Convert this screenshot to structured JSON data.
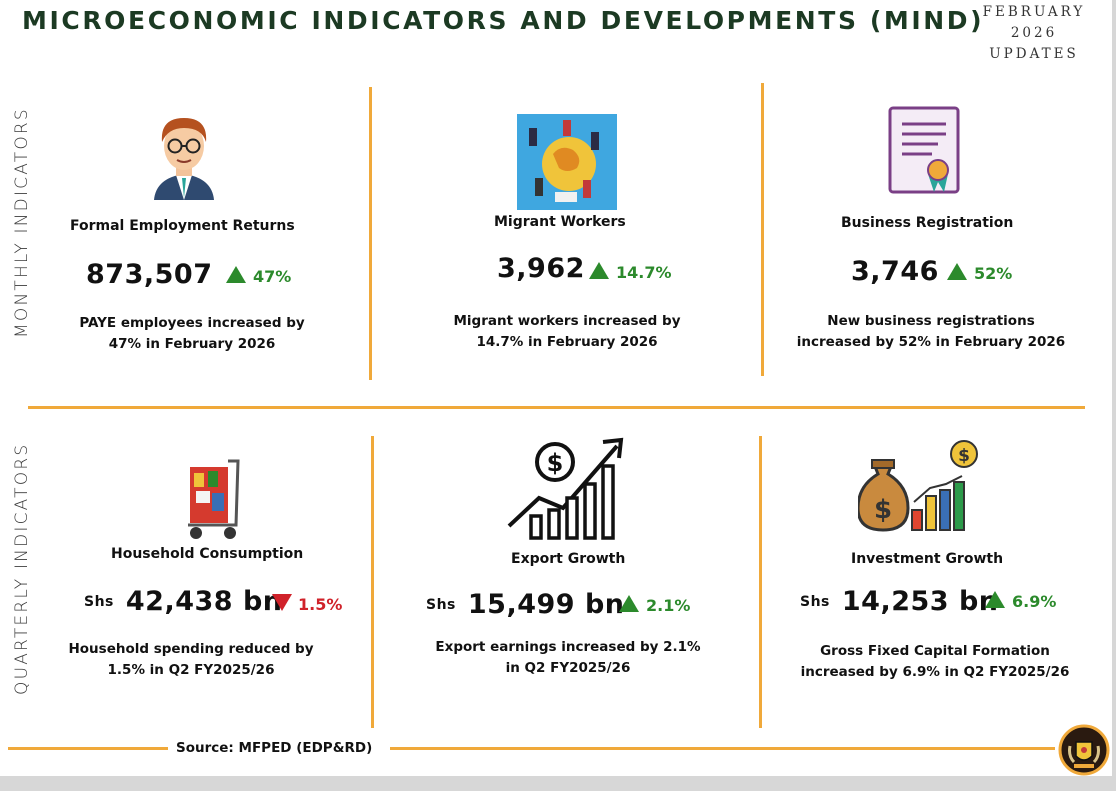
{
  "header": {
    "title": "MICROECONOMIC INDICATORS AND DEVELOPMENTS (MIND)",
    "badge_line1": "FEBRUARY",
    "badge_line2": "2026",
    "badge_line3": "UPDATES"
  },
  "sections": {
    "monthly": "MONTHLY INDICATORS",
    "quarterly": "QUARTERLY INDICATORS"
  },
  "monthly": [
    {
      "label": "Formal Employment Returns",
      "value": "873,507",
      "change": "47%",
      "direction": "up",
      "desc1": "PAYE employees increased by",
      "desc2": "47% in February 2026",
      "icon": "employee-icon"
    },
    {
      "label": "Migrant Workers",
      "value": "3,962",
      "change": "14.7%",
      "direction": "up",
      "desc1": "Migrant workers increased by",
      "desc2": "14.7% in February 2026",
      "icon": "globe-workers-icon"
    },
    {
      "label": "Business Registration",
      "value": "3,746",
      "change": "52%",
      "direction": "up",
      "desc1": "New business registrations",
      "desc2": "increased by 52% in February 2026",
      "icon": "certificate-icon"
    }
  ],
  "quarterly": [
    {
      "label": "Household Consumption",
      "currency": "Shs",
      "value": "42,438 bn",
      "change": "1.5%",
      "direction": "down",
      "desc1": "Household spending reduced by",
      "desc2": "1.5% in Q2 FY2025/26",
      "icon": "shopping-cart-icon"
    },
    {
      "label": "Export Growth",
      "currency": "Shs",
      "value": "15,499 bn",
      "change": "2.1%",
      "direction": "up",
      "desc1": "Export earnings increased by 2.1%",
      "desc2": "in Q2 FY2025/26",
      "icon": "growth-chart-icon"
    },
    {
      "label": "Investment Growth",
      "currency": "Shs",
      "value": "14,253 bn",
      "change": "6.9%",
      "direction": "up",
      "desc1": "Gross Fixed Capital Formation",
      "desc2": "increased by 6.9% in Q2 FY2025/26",
      "icon": "money-bag-icon"
    }
  ],
  "footer": {
    "source": "Source: MFPED (EDP&RD)",
    "emblem": "coat-of-arms-icon"
  },
  "colors": {
    "title": "#1c3a23",
    "accent_line": "#f0a93a",
    "up": "#2c8a2c",
    "down": "#d0222a"
  }
}
